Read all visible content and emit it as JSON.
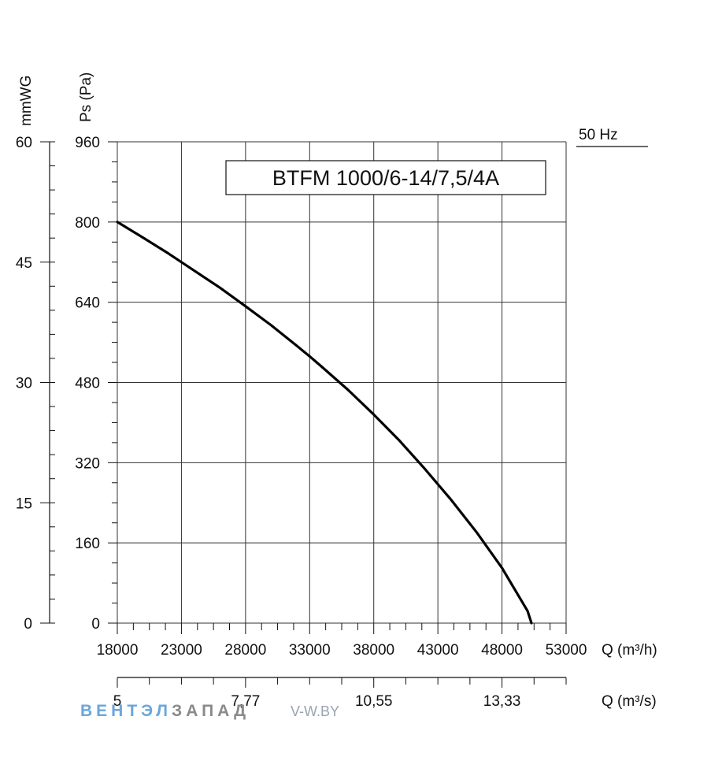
{
  "chart_data": {
    "type": "line",
    "title": "BTFM 1000/6-14/7,5/4A",
    "frequency_label": "50 Hz",
    "x": {
      "label": "Q (m³/h)",
      "range": [
        18000,
        53000
      ],
      "ticks": [
        "18000",
        "23000",
        "28000",
        "33000",
        "38000",
        "43000",
        "48000",
        "53000"
      ],
      "tick_values": [
        18000,
        23000,
        28000,
        33000,
        38000,
        43000,
        48000,
        53000
      ],
      "minor_step": 1250
    },
    "x2": {
      "label": "Q (m³/s)",
      "ticks": [
        "5",
        "7,77",
        "10,55",
        "13,33"
      ],
      "tick_values_m3h": [
        18000,
        28000,
        38000,
        48000
      ]
    },
    "y": {
      "label": "Ps (Pa)",
      "range": [
        0,
        960
      ],
      "ticks": [
        "0",
        "160",
        "320",
        "480",
        "640",
        "800",
        "960"
      ],
      "tick_values": [
        0,
        160,
        320,
        480,
        640,
        800,
        960
      ],
      "minor_step": 40
    },
    "y2": {
      "label": "mmWG",
      "range": [
        0,
        60
      ],
      "ticks": [
        "0",
        "15",
        "30",
        "45",
        "60"
      ],
      "tick_values": [
        0,
        15,
        30,
        45,
        60
      ],
      "minor_step": 3
    },
    "grid": true,
    "series": [
      {
        "x": [
          18000,
          20000,
          22000,
          24000,
          26000,
          28000,
          30000,
          32000,
          33000,
          34000,
          36000,
          38000,
          40000,
          42000,
          44000,
          46000,
          48000,
          50000,
          50300
        ],
        "y": [
          800,
          769,
          737,
          703,
          669,
          632,
          594,
          553,
          532,
          510,
          465,
          416,
          364,
          307,
          247,
          182,
          110,
          24,
          0
        ]
      }
    ]
  },
  "watermark": {
    "brand_part1": "ВЕНТЭЛ",
    "brand_part2": "ЗАПАД",
    "site": "V-W.BY",
    "color1": "#6aa6dc",
    "color2": "#8a8a8a"
  }
}
